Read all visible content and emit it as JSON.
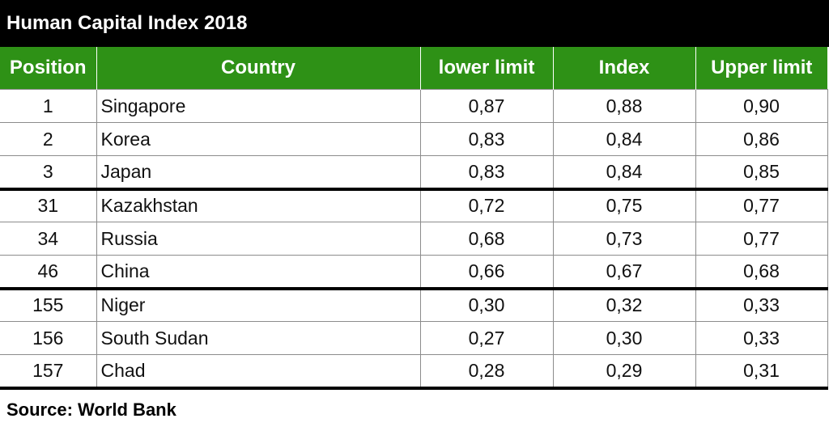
{
  "title": "Human Capital Index 2018",
  "headers": {
    "position": "Position",
    "country": "Country",
    "lower": "lower limit",
    "index": "Index",
    "upper": "Upper limit"
  },
  "rows": [
    {
      "position": "1",
      "country": "Singapore",
      "lower": "0,87",
      "index": "0,88",
      "upper": "0,90"
    },
    {
      "position": "2",
      "country": "Korea",
      "lower": "0,83",
      "index": "0,84",
      "upper": "0,86"
    },
    {
      "position": "3",
      "country": "Japan",
      "lower": "0,83",
      "index": "0,84",
      "upper": "0,85"
    },
    {
      "position": "31",
      "country": "Kazakhstan",
      "lower": "0,72",
      "index": "0,75",
      "upper": "0,77"
    },
    {
      "position": "34",
      "country": "Russia",
      "lower": "0,68",
      "index": "0,73",
      "upper": "0,77"
    },
    {
      "position": "46",
      "country": "China",
      "lower": "0,66",
      "index": "0,67",
      "upper": "0,68"
    },
    {
      "position": "155",
      "country": "Niger",
      "lower": "0,30",
      "index": "0,32",
      "upper": "0,33"
    },
    {
      "position": "156",
      "country": "South Sudan",
      "lower": "0,27",
      "index": "0,30",
      "upper": "0,33"
    },
    {
      "position": "157",
      "country": "Chad",
      "lower": "0,28",
      "index": "0,29",
      "upper": "0,31"
    }
  ],
  "source": "Source: World Bank",
  "colors": {
    "title_background": "#000000",
    "header_background": "#2e9116",
    "header_text": "#ffffff"
  }
}
